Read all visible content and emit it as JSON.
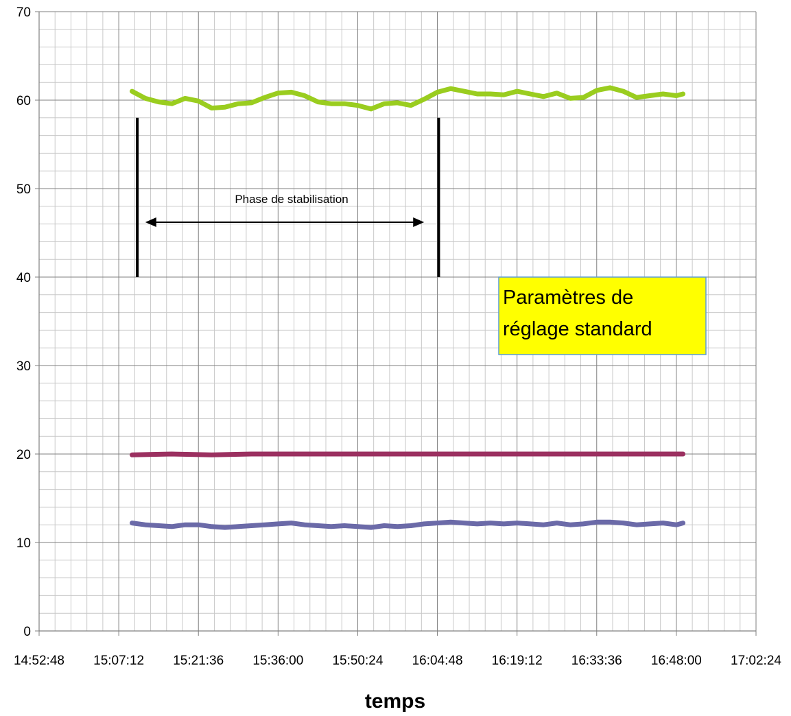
{
  "chart_data": {
    "type": "line",
    "title": "",
    "xlabel": "temps",
    "ylabel": "",
    "ylim": [
      0,
      70
    ],
    "yticks": [
      0,
      10,
      20,
      30,
      40,
      50,
      60,
      70
    ],
    "xlim": [
      "14:52:48",
      "17:02:24"
    ],
    "xticks": [
      "14:52:48",
      "15:07:12",
      "15:21:36",
      "15:36:00",
      "15:50:24",
      "16:04:48",
      "16:19:12",
      "16:33:36",
      "16:48:00",
      "17:02:24"
    ],
    "grid": true,
    "series": [
      {
        "color": "#9acd1f",
        "x": [
          "15:09:36",
          "15:12:00",
          "15:14:24",
          "15:16:48",
          "15:19:12",
          "15:21:36",
          "15:24:00",
          "15:26:24",
          "15:28:48",
          "15:31:12",
          "15:33:36",
          "15:36:00",
          "15:38:24",
          "15:40:48",
          "15:43:12",
          "15:45:36",
          "15:48:00",
          "15:50:24",
          "15:52:48",
          "15:55:12",
          "15:57:36",
          "16:00:00",
          "16:02:24",
          "16:04:48",
          "16:07:12",
          "16:09:36",
          "16:12:00",
          "16:14:24",
          "16:16:48",
          "16:19:12",
          "16:21:36",
          "16:24:00",
          "16:26:24",
          "16:28:48",
          "16:31:12",
          "16:33:36",
          "16:36:00",
          "16:38:24",
          "16:40:48",
          "16:43:12",
          "16:45:36",
          "16:48:00",
          "16:49:12"
        ],
        "values": [
          61.0,
          60.2,
          59.8,
          59.6,
          60.2,
          59.9,
          59.1,
          59.2,
          59.6,
          59.7,
          60.3,
          60.8,
          60.9,
          60.5,
          59.8,
          59.6,
          59.6,
          59.4,
          59.0,
          59.6,
          59.7,
          59.4,
          60.1,
          60.9,
          61.3,
          61.0,
          60.7,
          60.7,
          60.6,
          61.0,
          60.7,
          60.4,
          60.8,
          60.2,
          60.3,
          61.1,
          61.4,
          61.0,
          60.3,
          60.5,
          60.7,
          60.5,
          60.7
        ]
      },
      {
        "color": "#9b3060",
        "x": [
          "15:09:36",
          "15:16:48",
          "15:24:00",
          "15:31:12",
          "15:38:24",
          "15:45:36",
          "15:52:48",
          "16:00:00",
          "16:07:12",
          "16:14:24",
          "16:21:36",
          "16:28:48",
          "16:36:00",
          "16:43:12",
          "16:49:12"
        ],
        "values": [
          19.9,
          20.0,
          19.9,
          20.0,
          20.0,
          20.0,
          20.0,
          20.0,
          20.0,
          20.0,
          20.0,
          20.0,
          20.0,
          20.0,
          20.0
        ]
      },
      {
        "color": "#6b6aa8",
        "x": [
          "15:09:36",
          "15:12:00",
          "15:14:24",
          "15:16:48",
          "15:19:12",
          "15:21:36",
          "15:24:00",
          "15:26:24",
          "15:28:48",
          "15:31:12",
          "15:33:36",
          "15:36:00",
          "15:38:24",
          "15:40:48",
          "15:43:12",
          "15:45:36",
          "15:48:00",
          "15:50:24",
          "15:52:48",
          "15:55:12",
          "15:57:36",
          "16:00:00",
          "16:02:24",
          "16:04:48",
          "16:07:12",
          "16:09:36",
          "16:12:00",
          "16:14:24",
          "16:16:48",
          "16:19:12",
          "16:21:36",
          "16:24:00",
          "16:26:24",
          "16:28:48",
          "16:31:12",
          "16:33:36",
          "16:36:00",
          "16:38:24",
          "16:40:48",
          "16:43:12",
          "16:45:36",
          "16:48:00",
          "16:49:12"
        ],
        "values": [
          12.2,
          12.0,
          11.9,
          11.8,
          12.0,
          12.0,
          11.8,
          11.7,
          11.8,
          11.9,
          12.0,
          12.1,
          12.2,
          12.0,
          11.9,
          11.8,
          11.9,
          11.8,
          11.7,
          11.9,
          11.8,
          11.9,
          12.1,
          12.2,
          12.3,
          12.2,
          12.1,
          12.2,
          12.1,
          12.2,
          12.1,
          12.0,
          12.2,
          12.0,
          12.1,
          12.3,
          12.3,
          12.2,
          12.0,
          12.1,
          12.2,
          12.0,
          12.2
        ]
      }
    ],
    "markers": [
      {
        "x": "15:10:33",
        "y_from": 40,
        "y_to": 58
      },
      {
        "x": "16:05:02",
        "y_from": 40,
        "y_to": 58
      }
    ],
    "annotations": {
      "phase_label": "Phase de stabilisation",
      "phase_arrow": {
        "x_from": "15:12:00",
        "x_to": "16:02:24",
        "y": 46.2
      },
      "textbox_line1": "Paramètres de",
      "textbox_line2": "réglage standard",
      "textbox_fill": "#ffff00",
      "textbox_border": "#5b9bd5"
    }
  }
}
